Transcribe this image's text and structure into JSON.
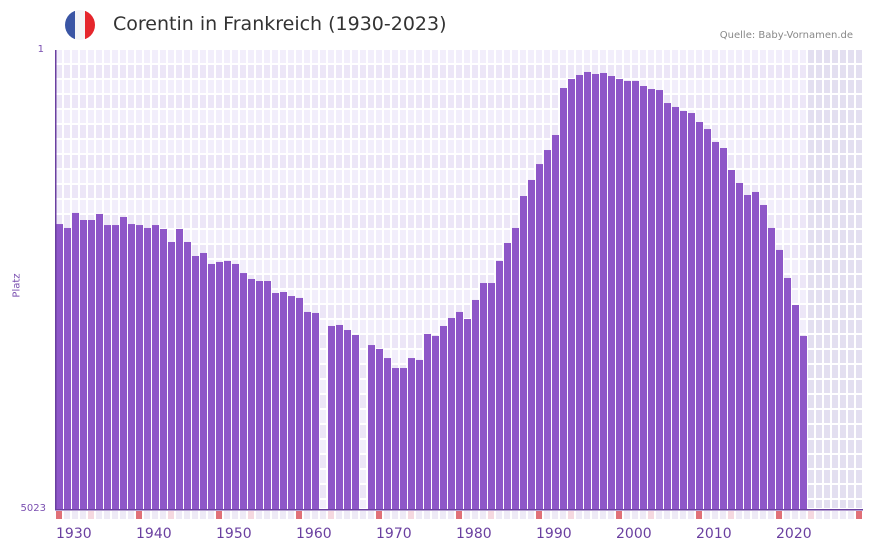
{
  "header": {
    "title": "Corentin in Frankreich (1930-2023)",
    "source": "Quelle: Baby-Vornamen.de",
    "flag": {
      "icon": "france-flag-icon",
      "colors": [
        "#3a55a4",
        "#f4f4f6",
        "#e5262c"
      ]
    }
  },
  "colors": {
    "bar": "#8e57c8",
    "grid_bg_a": "#f2eefb",
    "grid_bg_b": "#ece6f7",
    "future_bg": "#e3dff0",
    "axis": "#6a3fa0",
    "decade_marker": "#e07078",
    "mid_marker": "#f5d8e0",
    "year_marker": "#eeeaf6"
  },
  "chart_data": {
    "type": "bar",
    "title": "Corentin in Frankreich (1930-2023)",
    "xlabel": "",
    "ylabel": "Platz",
    "y_inverted": true,
    "ylim": [
      1,
      5023
    ],
    "yticks": [
      "1",
      "5023"
    ],
    "xlim": [
      1930,
      2030
    ],
    "xticks": [
      "1930",
      "1940",
      "1950",
      "1960",
      "1970",
      "1980",
      "1990",
      "2000",
      "2010",
      "2020"
    ],
    "grid": true,
    "legend": null,
    "future_shaded_from": 2024,
    "categories": [
      1930,
      1931,
      1932,
      1933,
      1934,
      1935,
      1936,
      1937,
      1938,
      1939,
      1940,
      1941,
      1942,
      1943,
      1944,
      1945,
      1946,
      1947,
      1948,
      1949,
      1950,
      1951,
      1952,
      1953,
      1954,
      1955,
      1956,
      1957,
      1958,
      1959,
      1960,
      1961,
      1962,
      1963,
      1964,
      1965,
      1966,
      1967,
      1968,
      1969,
      1970,
      1971,
      1972,
      1973,
      1974,
      1975,
      1976,
      1977,
      1978,
      1979,
      1980,
      1981,
      1982,
      1983,
      1984,
      1985,
      1986,
      1987,
      1988,
      1989,
      1990,
      1991,
      1992,
      1993,
      1994,
      1995,
      1996,
      1997,
      1998,
      1999,
      2000,
      2001,
      2002,
      2003,
      2004,
      2005,
      2006,
      2007,
      2008,
      2009,
      2010,
      2011,
      2012,
      2013,
      2014,
      2015,
      2016,
      2017,
      2018,
      2019,
      2020,
      2021,
      2022,
      2023
    ],
    "values": [
      1901,
      1944,
      1780,
      1857,
      1857,
      1791,
      1912,
      1912,
      1824,
      1901,
      1912,
      1944,
      1912,
      1955,
      2097,
      1955,
      2097,
      2250,
      2217,
      2337,
      2315,
      2304,
      2337,
      2436,
      2501,
      2523,
      2523,
      2654,
      2643,
      2687,
      2708,
      2861,
      2872,
      null,
      3014,
      3003,
      3058,
      3112,
      null,
      3222,
      3265,
      3364,
      3473,
      3473,
      3364,
      3385,
      3101,
      3123,
      3014,
      2927,
      2861,
      2938,
      2730,
      2545,
      2545,
      2304,
      2108,
      1944,
      1595,
      1420,
      1246,
      1093,
      929,
      416,
      318,
      274,
      241,
      263,
      252,
      285,
      318,
      339,
      339,
      394,
      427,
      438,
      580,
      623,
      667,
      689,
      787,
      864,
      1005,
      1071,
      1311,
      1453,
      1584,
      1551,
      1693,
      1944,
      2184,
      2490,
      2785,
      3123
    ]
  }
}
